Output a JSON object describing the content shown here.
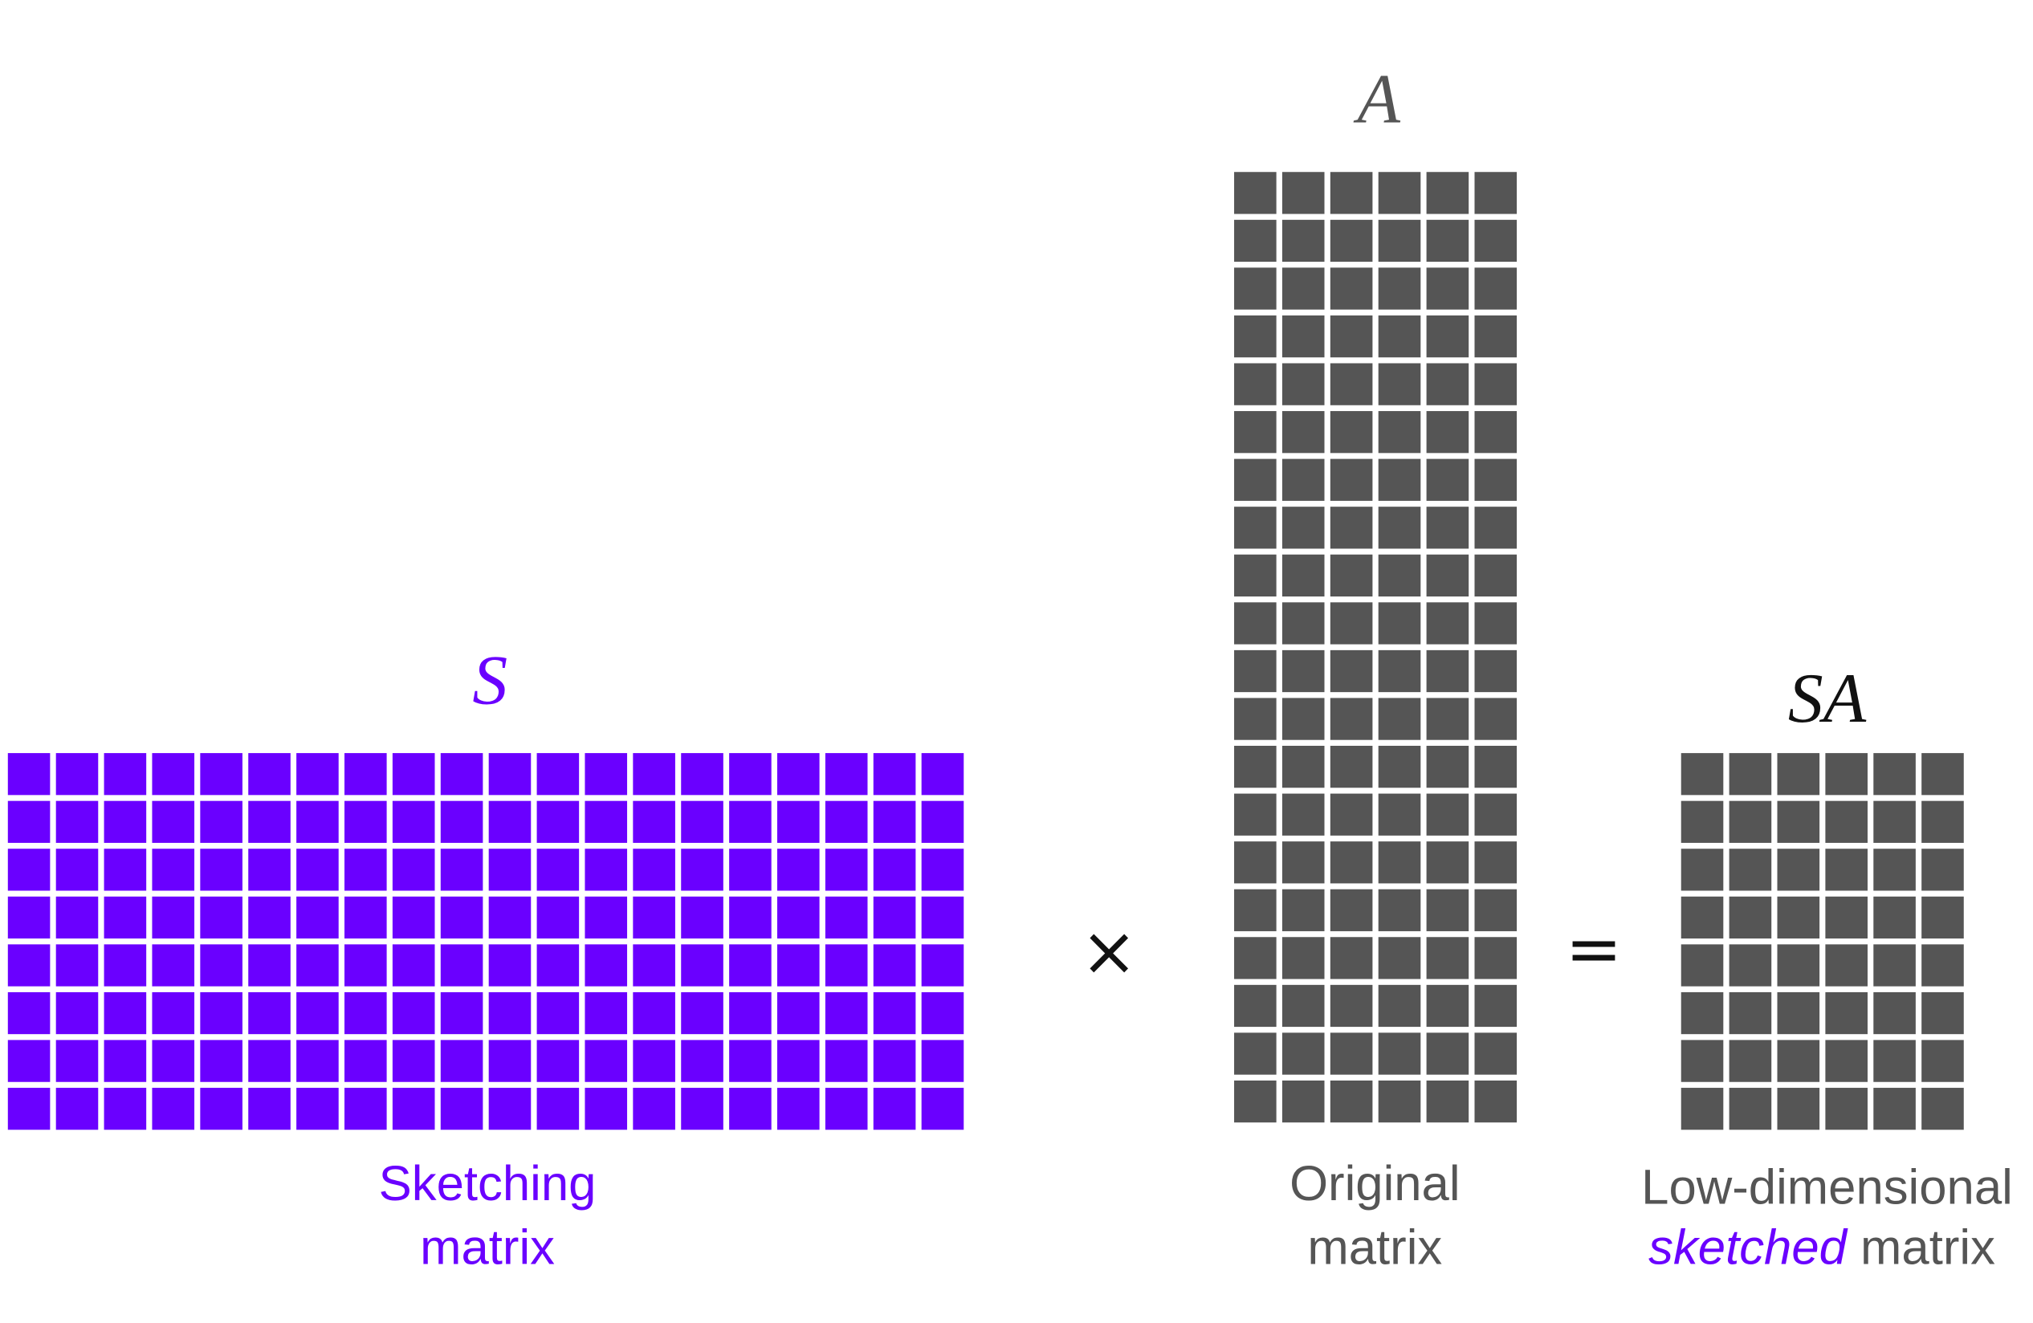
{
  "matrices": [
    {
      "symbol": "S",
      "caption": [
        "Sketching",
        "matrix"
      ]
    },
    {
      "symbol": "A",
      "caption": [
        "Original",
        "matrix"
      ]
    },
    {
      "symbol": "SA",
      "caption": [
        "Low-dimensional",
        "sketched",
        "matrix"
      ]
    }
  ],
  "operators": [
    "×",
    "="
  ]
}
